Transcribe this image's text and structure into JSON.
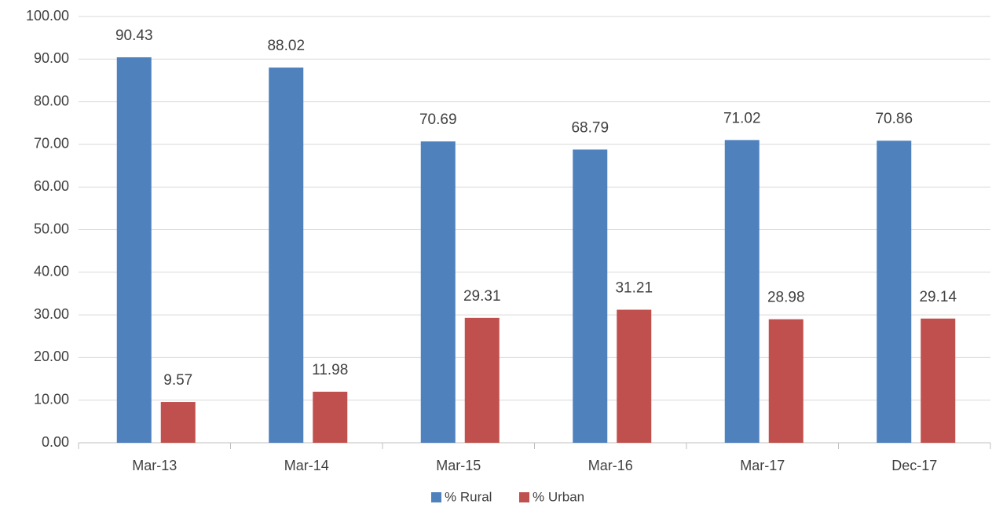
{
  "chart_data": {
    "type": "bar",
    "categories": [
      "Mar-13",
      "Mar-14",
      "Mar-15",
      "Mar-16",
      "Mar-17",
      "Dec-17"
    ],
    "series": [
      {
        "name": "% Rural",
        "color": "#4f81bd",
        "values": [
          90.43,
          88.02,
          70.69,
          68.79,
          71.02,
          70.86
        ]
      },
      {
        "name": "% Urban",
        "color": "#c0504d",
        "values": [
          9.57,
          11.98,
          29.31,
          31.21,
          28.98,
          29.14
        ]
      }
    ],
    "ylim": [
      0,
      100
    ],
    "yticks": [
      {
        "value": 0,
        "label": "0.00"
      },
      {
        "value": 10,
        "label": "10.00"
      },
      {
        "value": 20,
        "label": "20.00"
      },
      {
        "value": 30,
        "label": "30.00"
      },
      {
        "value": 40,
        "label": "40.00"
      },
      {
        "value": 50,
        "label": "50.00"
      },
      {
        "value": 60,
        "label": "60.00"
      },
      {
        "value": 70,
        "label": "70.00"
      },
      {
        "value": 80,
        "label": "80.00"
      },
      {
        "value": 90,
        "label": "90.00"
      },
      {
        "value": 100,
        "label": "100.00"
      }
    ],
    "grid": true,
    "legend": "bottom"
  }
}
